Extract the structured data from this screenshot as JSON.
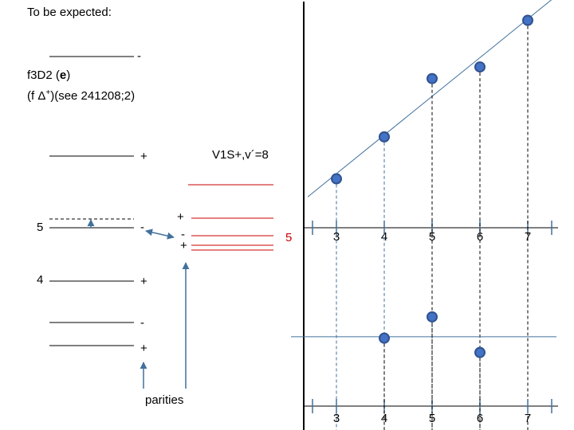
{
  "header": {
    "title": "To be expected:",
    "line1_prefix": "f3D2 (",
    "line1_bold": "e",
    "line1_suffix": ")",
    "line2_prefix": "(f ",
    "line2_delta": "Δ",
    "line2_sup": "+",
    "line2_suffix": ")(see 241208;2)"
  },
  "level_diagram": {
    "level_5_label": "5",
    "level_4_label": "4",
    "level_signs": [
      "-",
      "+",
      "-",
      "+",
      "-",
      "+"
    ],
    "red_label": "V1S+,v´=8",
    "red_number": "5",
    "red_signs": [
      "+",
      "-",
      "+"
    ],
    "parities_label": "parities",
    "colors": {
      "red": "#cc0000",
      "blue": "#41719c",
      "marker": "#4472c4"
    }
  },
  "chart_data": [
    {
      "type": "scatter",
      "x": [
        3,
        4,
        5,
        6,
        7
      ],
      "y": [
        1.05,
        1.95,
        3.2,
        3.45,
        4.45
      ],
      "xlim": [
        2.6,
        7.4
      ],
      "ylim": [
        0,
        4.75
      ],
      "tick_labels": [
        "3",
        "4",
        "5",
        "6",
        "7"
      ],
      "fit_line": true,
      "legend": "none"
    },
    {
      "type": "scatter",
      "x": [
        4,
        5,
        6
      ],
      "y": [
        -0.03,
        0.43,
        -0.34
      ],
      "xlim": [
        2.6,
        7.4
      ],
      "ylim": [
        -1.5,
        2.6
      ],
      "tick_labels": [
        "3",
        "4",
        "5",
        "6",
        "7"
      ],
      "reference_line": 0,
      "legend": "none"
    }
  ]
}
